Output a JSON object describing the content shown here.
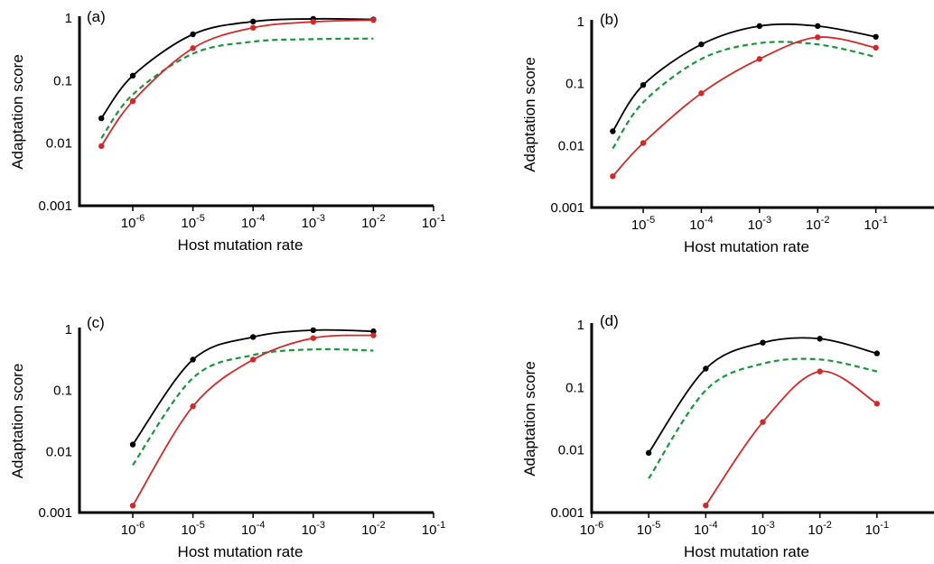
{
  "chart_data": [
    {
      "type": "line",
      "panel_label": "(a)",
      "xlabel": "Host mutation rate",
      "ylabel": "Adaptation score",
      "xscale": "log",
      "yscale": "log",
      "xlim": [
        1.3e-07,
        0.1
      ],
      "ylim": [
        0.001,
        1
      ],
      "xticks": [
        {
          "v": 1e-06,
          "e": "-6"
        },
        {
          "v": 1e-05,
          "e": "-5"
        },
        {
          "v": 0.0001,
          "e": "-4"
        },
        {
          "v": 0.001,
          "e": "-3"
        },
        {
          "v": 0.01,
          "e": "-2"
        },
        {
          "v": 0.1,
          "e": "-1"
        }
      ],
      "yticks": [
        {
          "v": 1,
          "t": "1"
        },
        {
          "v": 0.1,
          "t": "0.1"
        },
        {
          "v": 0.01,
          "t": "0.01"
        },
        {
          "v": 0.001,
          "t": "0.001"
        }
      ],
      "series": [
        {
          "color": "#000000",
          "dash": false,
          "markers": true,
          "x": [
            3e-07,
            1e-06,
            1e-05,
            0.0001,
            0.001,
            0.01
          ],
          "y": [
            0.025,
            0.12,
            0.55,
            0.88,
            0.97,
            0.95
          ]
        },
        {
          "color": "#d62728",
          "dash": false,
          "markers": true,
          "x": [
            3e-07,
            1e-06,
            1e-05,
            0.0001,
            0.001,
            0.01
          ],
          "y": [
            0.009,
            0.047,
            0.33,
            0.7,
            0.87,
            0.93
          ]
        },
        {
          "color": "#1a9641",
          "dash": true,
          "markers": false,
          "x": [
            3e-07,
            1e-06,
            1e-05,
            0.0001,
            0.001,
            0.01
          ],
          "y": [
            0.012,
            0.06,
            0.27,
            0.42,
            0.46,
            0.47
          ]
        }
      ]
    },
    {
      "type": "line",
      "panel_label": "(b)",
      "xlabel": "Host mutation rate",
      "ylabel": "Adaptation score",
      "xscale": "log",
      "yscale": "log",
      "xlim": [
        1.3e-06,
        1
      ],
      "ylim": [
        0.001,
        1
      ],
      "xticks": [
        {
          "v": 1e-05,
          "e": "-5"
        },
        {
          "v": 0.0001,
          "e": "-4"
        },
        {
          "v": 0.001,
          "e": "-3"
        },
        {
          "v": 0.01,
          "e": "-2"
        },
        {
          "v": 0.1,
          "e": "-1"
        }
      ],
      "yticks": [
        {
          "v": 1,
          "t": "1"
        },
        {
          "v": 0.1,
          "t": "0.1"
        },
        {
          "v": 0.01,
          "t": "0.01"
        },
        {
          "v": 0.001,
          "t": "0.001"
        }
      ],
      "series": [
        {
          "color": "#000000",
          "dash": false,
          "markers": true,
          "x": [
            3e-06,
            1e-05,
            0.0001,
            0.001,
            0.01,
            0.1
          ],
          "y": [
            0.017,
            0.095,
            0.43,
            0.85,
            0.85,
            0.57
          ]
        },
        {
          "color": "#d62728",
          "dash": false,
          "markers": true,
          "x": [
            3e-06,
            1e-05,
            0.0001,
            0.001,
            0.01,
            0.1
          ],
          "y": [
            0.0032,
            0.011,
            0.07,
            0.25,
            0.56,
            0.38
          ]
        },
        {
          "color": "#1a9641",
          "dash": true,
          "markers": false,
          "x": [
            3e-06,
            1e-05,
            0.0001,
            0.001,
            0.01,
            0.1
          ],
          "y": [
            0.009,
            0.05,
            0.25,
            0.45,
            0.43,
            0.27
          ]
        }
      ]
    },
    {
      "type": "line",
      "panel_label": "(c)",
      "xlabel": "Host mutation rate",
      "ylabel": "Adaptation score",
      "xscale": "log",
      "yscale": "log",
      "xlim": [
        1.3e-07,
        0.1
      ],
      "ylim": [
        0.001,
        1
      ],
      "xticks": [
        {
          "v": 1e-06,
          "e": "-6"
        },
        {
          "v": 1e-05,
          "e": "-5"
        },
        {
          "v": 0.0001,
          "e": "-4"
        },
        {
          "v": 0.001,
          "e": "-3"
        },
        {
          "v": 0.01,
          "e": "-2"
        },
        {
          "v": 0.1,
          "e": "-1"
        }
      ],
      "yticks": [
        {
          "v": 1,
          "t": "1"
        },
        {
          "v": 0.1,
          "t": "0.1"
        },
        {
          "v": 0.01,
          "t": "0.01"
        },
        {
          "v": 0.001,
          "t": "0.001"
        }
      ],
      "series": [
        {
          "color": "#000000",
          "dash": false,
          "markers": true,
          "x": [
            1e-06,
            1e-05,
            0.0001,
            0.001,
            0.01
          ],
          "y": [
            0.013,
            0.32,
            0.75,
            0.97,
            0.93
          ]
        },
        {
          "color": "#d62728",
          "dash": false,
          "markers": true,
          "x": [
            1e-06,
            1e-05,
            0.0001,
            0.001,
            0.01
          ],
          "y": [
            0.0013,
            0.055,
            0.32,
            0.72,
            0.8
          ]
        },
        {
          "color": "#1a9641",
          "dash": true,
          "markers": false,
          "x": [
            1e-06,
            1e-05,
            0.0001,
            0.001,
            0.01
          ],
          "y": [
            0.006,
            0.16,
            0.38,
            0.47,
            0.45
          ]
        }
      ]
    },
    {
      "type": "line",
      "panel_label": "(d)",
      "xlabel": "Host mutation rate",
      "ylabel": "Adaptation score",
      "xscale": "log",
      "yscale": "log",
      "xlim": [
        1e-06,
        1
      ],
      "ylim": [
        0.001,
        1
      ],
      "xticks": [
        {
          "v": 1e-06,
          "e": "-6"
        },
        {
          "v": 1e-05,
          "e": "-5"
        },
        {
          "v": 0.0001,
          "e": "-4"
        },
        {
          "v": 0.001,
          "e": "-3"
        },
        {
          "v": 0.01,
          "e": "-2"
        },
        {
          "v": 0.1,
          "e": "-1"
        }
      ],
      "yticks": [
        {
          "v": 1,
          "t": "1"
        },
        {
          "v": 0.1,
          "t": "0.1"
        },
        {
          "v": 0.01,
          "t": "0.01"
        },
        {
          "v": 0.001,
          "t": "0.001"
        }
      ],
      "series": [
        {
          "color": "#000000",
          "dash": false,
          "markers": true,
          "x": [
            1e-05,
            0.0001,
            0.001,
            0.01,
            0.1
          ],
          "y": [
            0.009,
            0.2,
            0.52,
            0.6,
            0.35
          ]
        },
        {
          "color": "#d62728",
          "dash": false,
          "markers": true,
          "x": [
            0.0001,
            0.001,
            0.01,
            0.1
          ],
          "y": [
            0.0013,
            0.028,
            0.18,
            0.055
          ]
        },
        {
          "color": "#1a9641",
          "dash": true,
          "markers": false,
          "x": [
            1e-05,
            0.0001,
            0.001,
            0.01,
            0.1
          ],
          "y": [
            0.0035,
            0.09,
            0.24,
            0.28,
            0.18
          ]
        }
      ]
    }
  ]
}
